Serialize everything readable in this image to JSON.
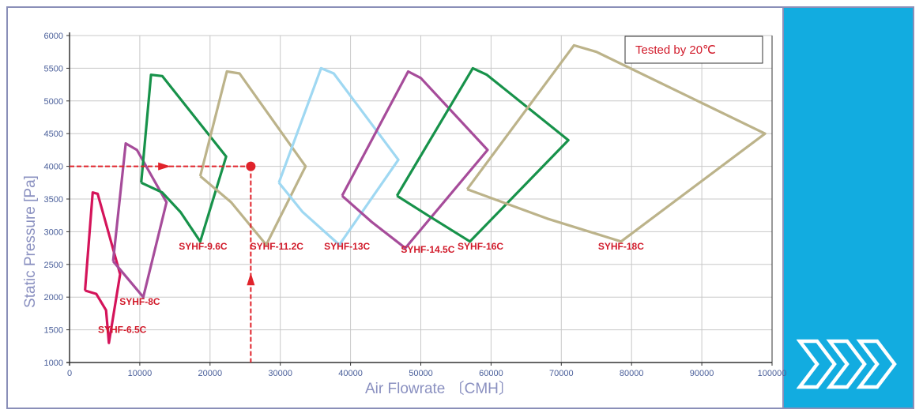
{
  "chart_data": {
    "type": "area",
    "xlabel": "Air Flowrate 〔CMH〕",
    "ylabel": "Static Pressure [Pa]",
    "xlim": [
      0,
      100000
    ],
    "ylim": [
      1000,
      6000
    ],
    "x_ticks": [
      "0",
      "10000",
      "20000",
      "30000",
      "40000",
      "50000",
      "60000",
      "70000",
      "80000",
      "90000",
      "100000"
    ],
    "y_ticks": [
      "1000",
      "1500",
      "2000",
      "2500",
      "3000",
      "3500",
      "4000",
      "4500",
      "5000",
      "5500",
      "6000"
    ],
    "x_tick_values": [
      0,
      10000,
      20000,
      30000,
      40000,
      50000,
      60000,
      70000,
      80000,
      90000,
      100000
    ],
    "y_tick_values": [
      1000,
      1500,
      2000,
      2500,
      3000,
      3500,
      4000,
      4500,
      5000,
      5500,
      6000
    ],
    "grid": true,
    "annotation": "Tested by 20℃",
    "operating_point": {
      "x": 25800,
      "y": 4000
    },
    "series": [
      {
        "name": "SYHF-6.5C",
        "color": "#d4145a",
        "label_at": [
          7500,
          1450
        ],
        "points": [
          [
            2200,
            2100
          ],
          [
            3300,
            3600
          ],
          [
            4000,
            3580
          ],
          [
            7200,
            2350
          ],
          [
            5600,
            1300
          ],
          [
            5200,
            1800
          ],
          [
            3800,
            2050
          ],
          [
            2200,
            2100
          ]
        ]
      },
      {
        "name": "SYHF-8C",
        "color": "#a64c9a",
        "label_at": [
          10000,
          1880
        ],
        "points": [
          [
            6200,
            2550
          ],
          [
            8000,
            4350
          ],
          [
            9600,
            4250
          ],
          [
            13800,
            3450
          ],
          [
            10500,
            2000
          ],
          [
            6200,
            2550
          ]
        ]
      },
      {
        "name": "SYHF-9.6C",
        "color": "#17924a",
        "label_at": [
          19000,
          2730
        ],
        "points": [
          [
            10200,
            3750
          ],
          [
            11600,
            5400
          ],
          [
            13200,
            5380
          ],
          [
            22300,
            4150
          ],
          [
            18600,
            2850
          ],
          [
            15800,
            3300
          ],
          [
            13200,
            3600
          ],
          [
            10200,
            3750
          ]
        ]
      },
      {
        "name": "SYHF-11.2C",
        "color": "#bcb38a",
        "label_at": [
          29500,
          2730
        ],
        "points": [
          [
            18600,
            3850
          ],
          [
            22400,
            5450
          ],
          [
            24200,
            5420
          ],
          [
            33600,
            4000
          ],
          [
            28000,
            2800
          ],
          [
            23000,
            3450
          ],
          [
            18600,
            3850
          ]
        ]
      },
      {
        "name": "SYHF-13C",
        "color": "#9fd8f2",
        "label_at": [
          39500,
          2730
        ],
        "points": [
          [
            29800,
            3750
          ],
          [
            35800,
            5500
          ],
          [
            37600,
            5420
          ],
          [
            46800,
            4100
          ],
          [
            38400,
            2800
          ],
          [
            33200,
            3300
          ],
          [
            29800,
            3750
          ]
        ]
      },
      {
        "name": "SYHF-14.5C",
        "color": "#a64c9a",
        "label_at": [
          51000,
          2680
        ],
        "points": [
          [
            38800,
            3550
          ],
          [
            48200,
            5450
          ],
          [
            50000,
            5350
          ],
          [
            59500,
            4250
          ],
          [
            47800,
            2750
          ],
          [
            43000,
            3150
          ],
          [
            38800,
            3550
          ]
        ]
      },
      {
        "name": "SYHF-16C",
        "color": "#17924a",
        "label_at": [
          58500,
          2730
        ],
        "points": [
          [
            46600,
            3550
          ],
          [
            57400,
            5500
          ],
          [
            59400,
            5400
          ],
          [
            71000,
            4400
          ],
          [
            57000,
            2850
          ],
          [
            51000,
            3250
          ],
          [
            46600,
            3550
          ]
        ]
      },
      {
        "name": "SYHF-18C",
        "color": "#bcb38a",
        "label_at": [
          78500,
          2730
        ],
        "points": [
          [
            56600,
            3650
          ],
          [
            71800,
            5850
          ],
          [
            75000,
            5750
          ],
          [
            99000,
            4500
          ],
          [
            78500,
            2850
          ],
          [
            68000,
            3200
          ],
          [
            56600,
            3650
          ]
        ]
      }
    ]
  }
}
